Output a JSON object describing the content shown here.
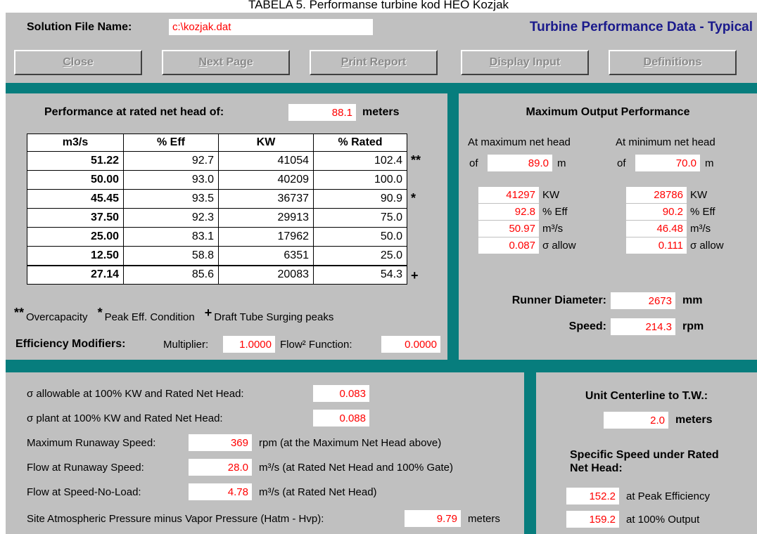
{
  "caption": "TABELA 5. Performanse turbine kod HEO Kozjak",
  "header": {
    "file_label": "Solution File Name:",
    "file_name": "c:\\kozjak.dat",
    "title": "Turbine Performance Data - Typical"
  },
  "buttons": [
    "Close",
    "Next Page",
    "Print Report",
    "Display Input",
    "Definitions"
  ],
  "performance": {
    "label": "Performance at rated net head of:",
    "head": "88.1",
    "unit": "meters",
    "columns": [
      "m3/s",
      "% Eff",
      "KW",
      "% Rated"
    ],
    "rows": [
      [
        "51.22",
        "92.7",
        "41054",
        "102.4"
      ],
      [
        "50.00",
        "93.0",
        "40209",
        "100.0"
      ],
      [
        "45.45",
        "93.5",
        "36737",
        "90.9"
      ],
      [
        "37.50",
        "92.3",
        "29913",
        "75.0"
      ],
      [
        "25.00",
        "83.1",
        "17962",
        "50.0"
      ],
      [
        "12.50",
        "58.8",
        "6351",
        "25.0"
      ],
      [
        "27.14",
        "85.6",
        "20083",
        "54.3"
      ]
    ],
    "row_marks": [
      "**",
      null,
      "*",
      null,
      null,
      null,
      "+"
    ]
  },
  "legend": [
    {
      "symbol": "**",
      "text": "Overcapacity"
    },
    {
      "symbol": "*",
      "text": "Peak Eff. Condition"
    },
    {
      "symbol": "+",
      "text": "Draft Tube Surging peaks"
    }
  ],
  "modifiers": {
    "label": "Efficiency Modifiers:",
    "multiplier_label": "Multiplier:",
    "multiplier": "1.0000",
    "function_label": "Flow² Function:",
    "function": "0.0000"
  },
  "max_output": {
    "title": "Maximum Output Performance",
    "columns": [
      {
        "heading": "At maximum net head",
        "of": "of",
        "head": "89.0",
        "head_unit": "m",
        "values": [
          "41297",
          "92.8",
          "50.97",
          "0.087"
        ],
        "units": [
          "KW",
          "% Eff",
          "m³/s",
          "σ allow"
        ]
      },
      {
        "heading": "At minimum net head",
        "of": "of",
        "head": "70.0",
        "head_unit": "m",
        "values": [
          "28786",
          "90.2",
          "46.48",
          "0.111"
        ],
        "units": [
          "KW",
          "% Eff",
          "m³/s",
          "σ allow"
        ]
      }
    ]
  },
  "runner": {
    "diameter_label": "Runner Diameter:",
    "diameter": "2673",
    "diameter_unit": "mm",
    "speed_label": "Speed:",
    "speed": "214.3",
    "speed_unit": "rpm"
  },
  "site": {
    "rows": [
      {
        "label": "σ allowable at 100% KW and Rated Net Head:",
        "value": "0.083"
      },
      {
        "label": "σ plant at 100% KW and Rated Net Head:",
        "value": "0.088"
      },
      {
        "label": "Maximum Runaway Speed:",
        "value": "369",
        "unit": "rpm (at the Maximum Net Head above)"
      },
      {
        "label": "Flow at Runaway Speed:",
        "value": "28.0",
        "unit": "m³/s (at Rated Net Head and 100% Gate)"
      },
      {
        "label": "Flow at Speed-No-Load:",
        "value": "4.78",
        "unit": "m³/s (at Rated Net Head)"
      },
      {
        "label": "Site Atmospheric Pressure minus Vapor Pressure (Hatm - Hvp):",
        "value": "9.79",
        "unit": "meters"
      }
    ]
  },
  "tailwater": {
    "label": "Unit Centerline to T.W.:",
    "value": "2.0",
    "unit": "meters",
    "specific_label": "Specific Speed under Rated Net Head:",
    "specific": [
      {
        "value": "152.2",
        "text": "at Peak Efficiency"
      },
      {
        "value": "159.2",
        "text": "at 100% Output"
      }
    ]
  }
}
